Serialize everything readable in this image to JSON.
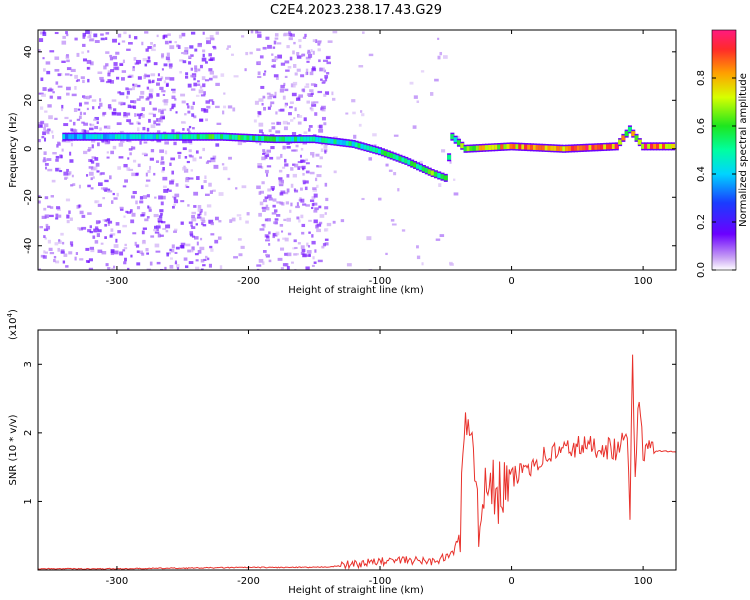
{
  "title": "C2E4.2023.238.17.43.G29",
  "chart_data": [
    {
      "type": "heatmap",
      "xlabel": "Height of straight line (km)",
      "ylabel": "Frequency (Hz)",
      "xlim": [
        -360,
        125
      ],
      "ylim": [
        -50,
        49
      ],
      "xticks": [
        -300,
        -200,
        -100,
        0,
        100
      ],
      "yticks": [
        -40,
        -20,
        0,
        20,
        40
      ],
      "colorbar": {
        "label": "Normalized spectral amplitude",
        "range": [
          0,
          1
        ],
        "ticks": [
          "0.0",
          "0.2",
          "0.4",
          "0.6",
          "0.8"
        ],
        "tick_values": [
          0,
          0.2,
          0.4,
          0.6,
          0.8
        ]
      },
      "ridge": [
        {
          "x": -340,
          "y": 5,
          "amp": 0.4
        },
        {
          "x": -300,
          "y": 5,
          "amp": 0.45
        },
        {
          "x": -260,
          "y": 5,
          "amp": 0.5
        },
        {
          "x": -220,
          "y": 5,
          "amp": 0.6
        },
        {
          "x": -180,
          "y": 4,
          "amp": 0.55
        },
        {
          "x": -150,
          "y": 4,
          "amp": 0.5
        },
        {
          "x": -120,
          "y": 2,
          "amp": 0.5
        },
        {
          "x": -100,
          "y": -1,
          "amp": 0.55
        },
        {
          "x": -80,
          "y": -5,
          "amp": 0.6
        },
        {
          "x": -60,
          "y": -10,
          "amp": 0.65
        },
        {
          "x": -50,
          "y": -12,
          "amp": 0.6
        },
        {
          "x": -45,
          "y": 5,
          "amp": 0.5
        },
        {
          "x": -35,
          "y": 0,
          "amp": 0.7
        },
        {
          "x": 0,
          "y": 1,
          "amp": 0.85
        },
        {
          "x": 40,
          "y": 0,
          "amp": 0.9
        },
        {
          "x": 80,
          "y": 1,
          "amp": 0.9
        },
        {
          "x": 90,
          "y": 8,
          "amp": 0.7
        },
        {
          "x": 100,
          "y": 1,
          "amp": 0.9
        },
        {
          "x": 125,
          "y": 1,
          "amp": 0.9
        }
      ]
    },
    {
      "type": "line",
      "xlabel": "Height of straight line (km)",
      "ylabel": "SNR (10 * v/v)",
      "y_multiplier": "(x10",
      "y_multiplier_exp": "4",
      "y_multiplier_close": ")",
      "xlim": [
        -360,
        125
      ],
      "ylim": [
        0,
        3.5
      ],
      "xticks": [
        -300,
        -200,
        -100,
        0,
        100
      ],
      "yticks": [
        1,
        2,
        3
      ],
      "series": [
        {
          "color": "#e8312b",
          "x": [
            -360,
            -300,
            -200,
            -150,
            -120,
            -100,
            -80,
            -60,
            -45,
            -40,
            -35,
            -30,
            -28,
            -25,
            -22,
            -20,
            -15,
            -10,
            0,
            10,
            20,
            30,
            40,
            50,
            60,
            70,
            80,
            85,
            88,
            90,
            92,
            94,
            96,
            100,
            110,
            125
          ],
          "y": [
            0.01,
            0.01,
            0.03,
            0.03,
            0.06,
            0.1,
            0.12,
            0.1,
            0.2,
            0.5,
            1.8,
            2.3,
            1.5,
            0.8,
            1.3,
            1.0,
            1.2,
            1.1,
            1.3,
            1.5,
            1.6,
            1.7,
            1.75,
            1.8,
            1.8,
            1.8,
            1.75,
            1.85,
            2.0,
            0.9,
            3.0,
            1.2,
            2.5,
            1.75,
            1.73,
            1.72
          ]
        }
      ]
    }
  ]
}
